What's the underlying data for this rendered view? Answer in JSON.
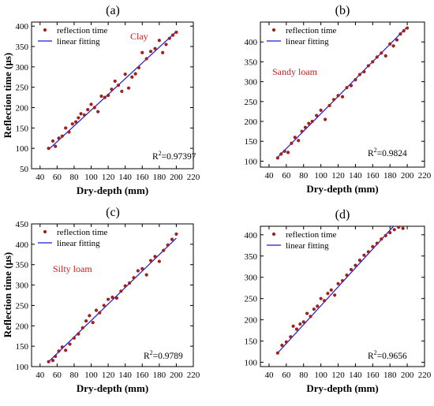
{
  "legend": {
    "scatter_label": "reflection time",
    "line_label": "linear fitting"
  },
  "colors": {
    "points": "#a02020",
    "line": "#1a1ad8",
    "soil_label": "#c42020",
    "axis": "#000000"
  },
  "chart_data": [
    {
      "type": "scatter",
      "panel": "(a)",
      "soil": "Clay",
      "r2_prefix": "R",
      "r2_sup": "2",
      "r2_value": "=0.97397",
      "xlabel": "Dry-depth (mm)",
      "ylabel": "Reflection time (μs)",
      "xlim": [
        30,
        220
      ],
      "ylim": [
        50,
        410
      ],
      "xticks": [
        40,
        60,
        80,
        100,
        120,
        140,
        160,
        180,
        200,
        220
      ],
      "yticks": [
        50,
        100,
        150,
        200,
        250,
        300,
        350,
        400
      ],
      "legend_position": "top-left",
      "grid": false,
      "series": [
        {
          "name": "reflection time",
          "points": [
            [
              50,
              100
            ],
            [
              55,
              118
            ],
            [
              58,
              105
            ],
            [
              62,
              125
            ],
            [
              66,
              130
            ],
            [
              70,
              150
            ],
            [
              74,
              140
            ],
            [
              78,
              160
            ],
            [
              82,
              165
            ],
            [
              85,
              175
            ],
            [
              88,
              185
            ],
            [
              92,
              182
            ],
            [
              96,
              195
            ],
            [
              100,
              208
            ],
            [
              104,
              200
            ],
            [
              108,
              190
            ],
            [
              112,
              228
            ],
            [
              116,
              225
            ],
            [
              120,
              230
            ],
            [
              124,
              245
            ],
            [
              128,
              265
            ],
            [
              132,
              255
            ],
            [
              136,
              240
            ],
            [
              140,
              282
            ],
            [
              144,
              248
            ],
            [
              148,
              275
            ],
            [
              152,
              283
            ],
            [
              156,
              298
            ],
            [
              160,
              335
            ],
            [
              165,
              320
            ],
            [
              170,
              338
            ],
            [
              175,
              345
            ],
            [
              180,
              365
            ],
            [
              184,
              335
            ],
            [
              188,
              355
            ],
            [
              192,
              370
            ],
            [
              196,
              378
            ],
            [
              200,
              385
            ]
          ]
        },
        {
          "name": "linear fitting",
          "line": [
            [
              50,
              97
            ],
            [
              200,
              387
            ]
          ]
        }
      ]
    },
    {
      "type": "scatter",
      "panel": "(b)",
      "soil": "Sandy loam",
      "r2_prefix": "R",
      "r2_sup": "2",
      "r2_value": "=0.9824",
      "xlabel": "Dry-depth (mm)",
      "ylabel": "",
      "xlim": [
        30,
        220
      ],
      "ylim": [
        85,
        450
      ],
      "xticks": [
        40,
        60,
        80,
        100,
        120,
        140,
        160,
        180,
        200,
        220
      ],
      "yticks": [
        100,
        150,
        200,
        250,
        300,
        350,
        400
      ],
      "legend_position": "top-left",
      "grid": false,
      "series": [
        {
          "name": "reflection time",
          "points": [
            [
              50,
              108
            ],
            [
              54,
              118
            ],
            [
              58,
              125
            ],
            [
              62,
              122
            ],
            [
              66,
              145
            ],
            [
              70,
              160
            ],
            [
              74,
              152
            ],
            [
              78,
              175
            ],
            [
              82,
              185
            ],
            [
              86,
              195
            ],
            [
              90,
              200
            ],
            [
              95,
              215
            ],
            [
              100,
              228
            ],
            [
              105,
              205
            ],
            [
              110,
              240
            ],
            [
              115,
              255
            ],
            [
              120,
              265
            ],
            [
              125,
              262
            ],
            [
              130,
              285
            ],
            [
              135,
              290
            ],
            [
              140,
              305
            ],
            [
              145,
              318
            ],
            [
              150,
              325
            ],
            [
              155,
              340
            ],
            [
              160,
              350
            ],
            [
              165,
              362
            ],
            [
              170,
              372
            ],
            [
              175,
              365
            ],
            [
              180,
              395
            ],
            [
              184,
              390
            ],
            [
              188,
              405
            ],
            [
              192,
              420
            ],
            [
              196,
              428
            ],
            [
              200,
              435
            ]
          ]
        },
        {
          "name": "linear fitting",
          "line": [
            [
              50,
              110
            ],
            [
              200,
              438
            ]
          ]
        }
      ]
    },
    {
      "type": "scatter",
      "panel": "(c)",
      "soil": "Silty loam",
      "r2_prefix": "R",
      "r2_sup": "2",
      "r2_value": "=0.9789",
      "xlabel": "Dry-depth (mm)",
      "ylabel": "Reflection time (μs)",
      "xlim": [
        30,
        220
      ],
      "ylim": [
        100,
        450
      ],
      "xticks": [
        40,
        60,
        80,
        100,
        120,
        140,
        160,
        180,
        200,
        220
      ],
      "yticks": [
        100,
        150,
        200,
        250,
        300,
        350,
        400,
        450
      ],
      "legend_position": "top-left",
      "grid": false,
      "series": [
        {
          "name": "reflection time",
          "points": [
            [
              50,
              112
            ],
            [
              55,
              115
            ],
            [
              58,
              125
            ],
            [
              62,
              138
            ],
            [
              66,
              148
            ],
            [
              70,
              140
            ],
            [
              75,
              155
            ],
            [
              80,
              170
            ],
            [
              85,
              180
            ],
            [
              90,
              195
            ],
            [
              94,
              212
            ],
            [
              98,
              225
            ],
            [
              102,
              208
            ],
            [
              106,
              238
            ],
            [
              110,
              232
            ],
            [
              115,
              250
            ],
            [
              120,
              265
            ],
            [
              125,
              270
            ],
            [
              130,
              268
            ],
            [
              135,
              285
            ],
            [
              140,
              298
            ],
            [
              145,
              305
            ],
            [
              150,
              318
            ],
            [
              155,
              335
            ],
            [
              160,
              340
            ],
            [
              165,
              325
            ],
            [
              170,
              360
            ],
            [
              175,
              370
            ],
            [
              180,
              358
            ],
            [
              185,
              385
            ],
            [
              190,
              398
            ],
            [
              195,
              412
            ],
            [
              200,
              425
            ]
          ]
        },
        {
          "name": "linear fitting",
          "line": [
            [
              50,
              112
            ],
            [
              200,
              415
            ]
          ]
        }
      ]
    },
    {
      "type": "scatter",
      "panel": "(d)",
      "soil": "",
      "r2_prefix": "R",
      "r2_sup": "2",
      "r2_value": "=0.9656",
      "xlabel": "Dry-depth (mm)",
      "ylabel": "",
      "xlim": [
        30,
        220
      ],
      "ylim": [
        90,
        420
      ],
      "xticks": [
        40,
        60,
        80,
        100,
        120,
        140,
        160,
        180,
        200,
        220
      ],
      "yticks": [
        100,
        150,
        200,
        250,
        300,
        350,
        400
      ],
      "legend_position": "top-left",
      "grid": false,
      "series": [
        {
          "name": "reflection time",
          "points": [
            [
              50,
              122
            ],
            [
              55,
              140
            ],
            [
              60,
              148
            ],
            [
              65,
              160
            ],
            [
              68,
              185
            ],
            [
              72,
              178
            ],
            [
              76,
              190
            ],
            [
              80,
              195
            ],
            [
              84,
              215
            ],
            [
              88,
              208
            ],
            [
              92,
              225
            ],
            [
              96,
              232
            ],
            [
              100,
              250
            ],
            [
              104,
              245
            ],
            [
              108,
              262
            ],
            [
              112,
              270
            ],
            [
              116,
              258
            ],
            [
              120,
              285
            ],
            [
              125,
              292
            ],
            [
              130,
              305
            ],
            [
              135,
              318
            ],
            [
              140,
              328
            ],
            [
              145,
              340
            ],
            [
              150,
              352
            ],
            [
              155,
              360
            ],
            [
              160,
              372
            ],
            [
              165,
              380
            ],
            [
              170,
              390
            ],
            [
              175,
              398
            ],
            [
              180,
              405
            ],
            [
              185,
              412
            ],
            [
              190,
              418
            ],
            [
              195,
              415
            ]
          ]
        },
        {
          "name": "linear fitting",
          "line": [
            [
              50,
              122
            ],
            [
              185,
              422
            ]
          ]
        }
      ]
    }
  ]
}
